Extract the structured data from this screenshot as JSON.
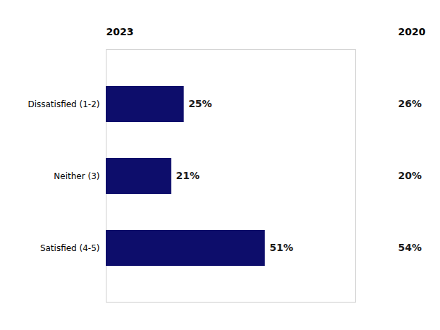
{
  "chart_data": {
    "type": "bar",
    "orientation": "horizontal",
    "categories": [
      "Dissatisfied (1-2)",
      "Neither (3)",
      "Satisfied (4-5)"
    ],
    "series": [
      {
        "name": "2023",
        "type": "bar",
        "color": "#0D0D6B",
        "values": [
          25,
          21,
          51
        ],
        "value_labels": [
          "25%",
          "21%",
          "51%"
        ]
      },
      {
        "name": "2020",
        "type": "text",
        "values": [
          26,
          20,
          54
        ],
        "value_labels": [
          "26%",
          "20%",
          "54%"
        ]
      }
    ],
    "xlim": [
      0,
      80
    ],
    "xticks": [],
    "tick_labels": "y",
    "data_labels": true,
    "grid": false
  }
}
